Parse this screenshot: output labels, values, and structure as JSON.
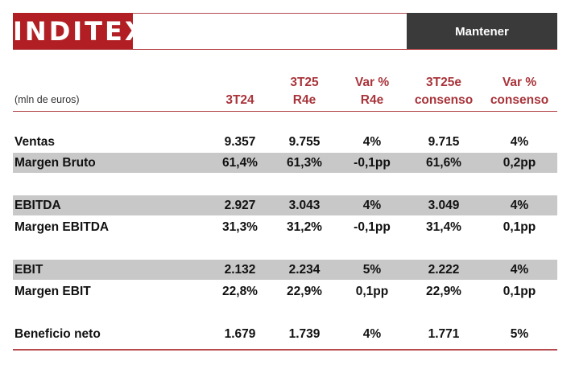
{
  "header": {
    "logo_text": "INDITEX",
    "rating": "Mantener",
    "brand_color": "#b11f24"
  },
  "table": {
    "units": "(mln de euros)",
    "columns": [
      {
        "line1": "",
        "line2": "3T24"
      },
      {
        "line1": "3T25",
        "line2": "R4e"
      },
      {
        "line1": "Var %",
        "line2": "R4e"
      },
      {
        "line1": "3T25e",
        "line2": "consenso"
      },
      {
        "line1": "Var %",
        "line2": "consenso"
      }
    ],
    "rows": [
      {
        "label": "Ventas",
        "shaded": false,
        "values": [
          "9.357",
          "9.755",
          "4%",
          "9.715",
          "4%"
        ]
      },
      {
        "label": "Margen Bruto",
        "shaded": true,
        "values": [
          "61,4%",
          "61,3%",
          "-0,1pp",
          "61,6%",
          "0,2pp"
        ]
      },
      {
        "label": "EBITDA",
        "shaded": true,
        "values": [
          "2.927",
          "3.043",
          "4%",
          "3.049",
          "4%"
        ]
      },
      {
        "label": "Margen EBITDA",
        "shaded": false,
        "values": [
          "31,3%",
          "31,2%",
          "-0,1pp",
          "31,4%",
          "0,1pp"
        ]
      },
      {
        "label": "EBIT",
        "shaded": true,
        "values": [
          "2.132",
          "2.234",
          "5%",
          "2.222",
          "4%"
        ]
      },
      {
        "label": "Margen EBIT",
        "shaded": false,
        "values": [
          "22,8%",
          "22,9%",
          "0,1pp",
          "22,9%",
          "0,1pp"
        ]
      },
      {
        "label": "Beneficio neto",
        "shaded": false,
        "values": [
          "1.679",
          "1.739",
          "4%",
          "1.771",
          "5%"
        ]
      }
    ]
  }
}
